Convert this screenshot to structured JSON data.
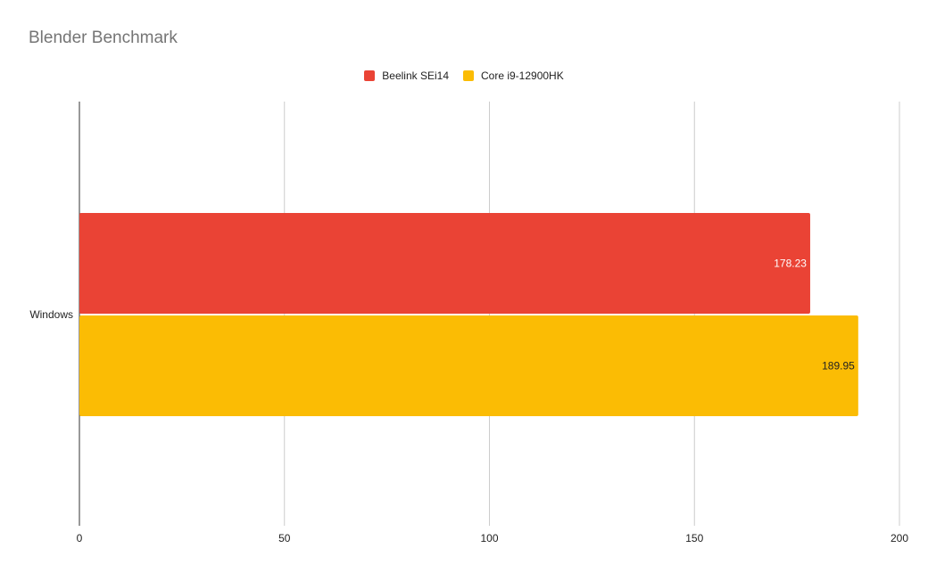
{
  "chart_data": {
    "type": "bar",
    "orientation": "horizontal",
    "title": "Blender Benchmark",
    "categories": [
      "Windows"
    ],
    "series": [
      {
        "name": "Beelink SEi14",
        "values": [
          178.23
        ],
        "color": "#ea4335",
        "label_color": "#ffffff"
      },
      {
        "name": "Core i9-12900HK",
        "values": [
          189.95
        ],
        "color": "#fbbc04",
        "label_color": "#222222"
      }
    ],
    "data_labels": [
      "178.23",
      "189.95"
    ],
    "xlim": [
      0,
      200
    ],
    "xticks": [
      "0",
      "50",
      "100",
      "150",
      "200"
    ],
    "grid": true,
    "legend_position": "top"
  }
}
